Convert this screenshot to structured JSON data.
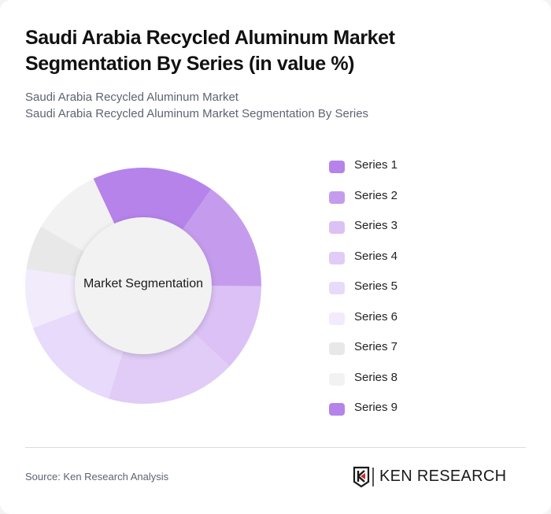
{
  "header": {
    "title": "Saudi Arabia Recycled Aluminum Market Segmentation By Series (in value %)",
    "subtitle_line1": "Saudi Arabia Recycled Aluminum Market",
    "subtitle_line2": "Saudi Arabia Recycled Aluminum Market Segmentation By Series"
  },
  "chart": {
    "center_label": "Market Segmentation"
  },
  "legend": {
    "items": [
      {
        "label": "Series 1",
        "color": "#b583ea"
      },
      {
        "label": "Series 2",
        "color": "#c59ced"
      },
      {
        "label": "Series 3",
        "color": "#dbc1f5"
      },
      {
        "label": "Series 4",
        "color": "#e0ccf6"
      },
      {
        "label": "Series 5",
        "color": "#e8dafa"
      },
      {
        "label": "Series 6",
        "color": "#f2ebfc"
      },
      {
        "label": "Series 7",
        "color": "#e8e8e8"
      },
      {
        "label": "Series 8",
        "color": "#f2f2f2"
      },
      {
        "label": "Series 9",
        "color": "#b583ea"
      }
    ]
  },
  "footer": {
    "source": "Source: Ken Research Analysis",
    "logo_text": "KEN RESEARCH"
  },
  "chart_data": {
    "type": "pie",
    "variant": "donut",
    "title": "Saudi Arabia Recycled Aluminum Market Segmentation By Series (in value %)",
    "center_label": "Market Segmentation",
    "categories": [
      "Series 1",
      "Series 2",
      "Series 3",
      "Series 4",
      "Series 5",
      "Series 6",
      "Series 7",
      "Series 8",
      "Series 9"
    ],
    "values": [
      16.7,
      15.3,
      11.9,
      17.8,
      14.4,
      8.1,
      6.1,
      9.7,
      0
    ],
    "colors": [
      "#b583ea",
      "#c59ced",
      "#dbc1f5",
      "#e0ccf6",
      "#e8dafa",
      "#f2ebfc",
      "#e8e8e8",
      "#f2f2f2",
      "#b583ea"
    ],
    "start_angle_deg": -25,
    "legend_position": "right",
    "units": "%"
  }
}
